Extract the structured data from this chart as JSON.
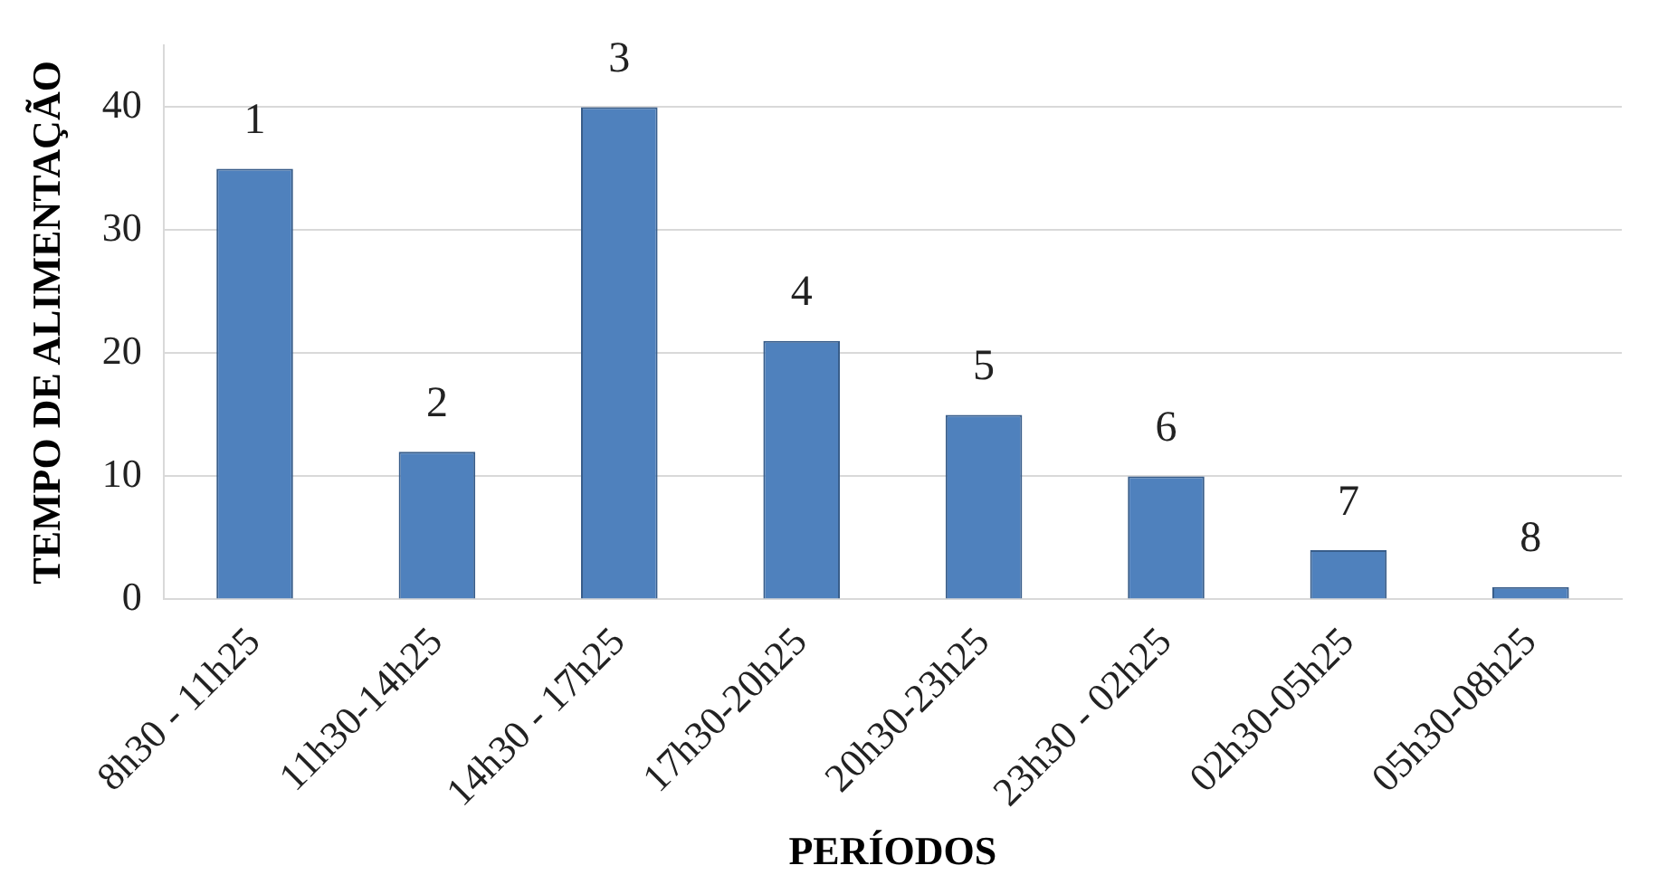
{
  "chart_data": {
    "type": "bar",
    "xlabel": "PERÍODOS",
    "ylabel": "TEMPO DE ALIMENTAÇÃO",
    "categories": [
      "8h30 - 11h25",
      "11h30-14h25",
      "14h30 - 17h25",
      "17h30-20h25",
      "20h30-23h25",
      "23h30 - 02h25",
      "02h30-05h25",
      "05h30-08h25"
    ],
    "values": [
      35,
      12,
      40,
      21,
      15,
      10,
      4,
      1
    ],
    "color": "#4f81bd",
    "ylim": [
      0,
      45
    ],
    "yticks": [
      0,
      10,
      20,
      30,
      40
    ],
    "grid": "y",
    "annotations": [
      {
        "text": "1",
        "x": "8h30 - 11h25",
        "y": 35
      },
      {
        "text": "2",
        "x": "11h30-14h25",
        "y": 12
      },
      {
        "text": "3",
        "x": "14h30 - 17h25",
        "y": 40
      },
      {
        "text": "4",
        "x": "17h30-20h25",
        "y": 21
      },
      {
        "text": "5",
        "x": "20h30-23h25",
        "y": 15
      },
      {
        "text": "6",
        "x": "23h30 - 02h25",
        "y": 10
      },
      {
        "text": "7",
        "x": "02h30-05h25",
        "y": 4
      },
      {
        "text": "8",
        "x": "05h30-08h25",
        "y": 1
      }
    ]
  }
}
